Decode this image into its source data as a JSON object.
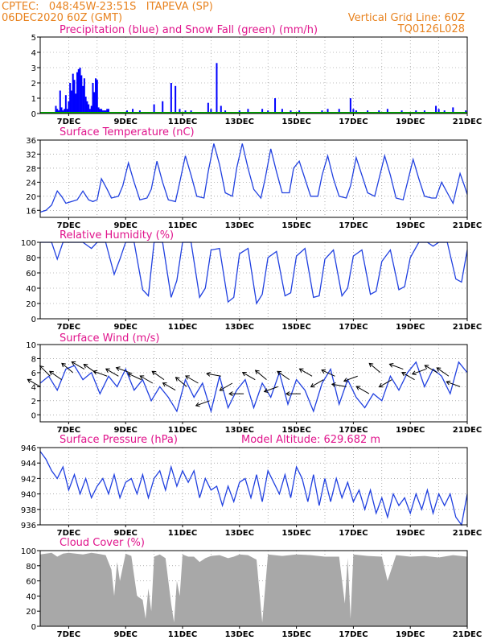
{
  "header": {
    "line1_left": "CPTEC:   048:45W-23:51S   ITAPEVA (SP)",
    "line2_left": "06DEC2020 60Z (GMT)",
    "line2_right": "Vertical Grid Line: 60Z",
    "line3_right": "TQ0126L028"
  },
  "colors": {
    "header": "#e8821e",
    "title": "#e0148c",
    "precip": "#0000ff",
    "snow": "#00aa00",
    "line": "#2040e0",
    "wind": "#000000",
    "cloud": "#a8a8a8",
    "grid": "#808080"
  },
  "x_axis": {
    "ticks": [
      "7DEC",
      "9DEC",
      "11DEC",
      "13DEC",
      "15DEC",
      "17DEC",
      "19DEC",
      "21DEC"
    ],
    "start_day": 6.0,
    "end_day": 21.0
  },
  "chart_data": [
    {
      "type": "bar",
      "title": "Precipitation (blue) and Snow Fall (green) (mm/h)",
      "ylim": [
        0,
        5
      ],
      "yticks": [
        "0",
        "1",
        "2",
        "3",
        "4",
        "5"
      ],
      "series": [
        {
          "name": "Precipitation",
          "x": [
            6.55,
            6.6,
            6.65,
            6.7,
            6.75,
            6.8,
            6.85,
            6.9,
            6.95,
            7.0,
            7.05,
            7.1,
            7.15,
            7.2,
            7.25,
            7.3,
            7.35,
            7.4,
            7.45,
            7.5,
            7.55,
            7.6,
            7.65,
            7.7,
            7.75,
            7.8,
            7.85,
            7.9,
            7.95,
            8.0,
            8.05,
            8.1,
            8.15,
            8.2,
            8.25,
            8.3,
            8.35,
            8.4,
            9.05,
            9.25,
            9.5,
            10.0,
            10.3,
            10.6,
            10.75,
            10.9,
            11.1,
            11.3,
            11.6,
            11.9,
            12.0,
            12.2,
            12.35,
            12.5,
            13.0,
            13.3,
            13.8,
            14.0,
            14.25,
            14.5,
            14.8,
            15.1,
            15.5,
            15.9,
            16.1,
            16.5,
            16.9,
            17.0,
            17.1,
            17.5,
            17.9,
            18.2,
            18.7,
            19.2,
            19.5,
            19.9,
            20.0,
            20.2,
            20.5,
            20.95
          ],
          "values": [
            0.5,
            0.3,
            0.2,
            1.5,
            0.4,
            0.2,
            0.3,
            1.2,
            0.3,
            0.8,
            2.0,
            1.5,
            2.6,
            2.2,
            1.3,
            2.7,
            2.9,
            3.0,
            2.5,
            1.8,
            2.3,
            1.1,
            0.8,
            0.6,
            0.3,
            0.5,
            2.0,
            1.4,
            2.3,
            2.2,
            0.4,
            0.3,
            0.3,
            0.2,
            0.2,
            0.2,
            0.3,
            0.3,
            0.2,
            0.3,
            0.2,
            0.6,
            0.8,
            2.0,
            1.8,
            0.3,
            0.2,
            0.2,
            0.1,
            0.7,
            0.3,
            3.3,
            0.5,
            0.2,
            0.2,
            0.3,
            0.3,
            0.2,
            1.0,
            0.3,
            0.2,
            0.2,
            0.1,
            0.2,
            0.3,
            0.3,
            1.0,
            0.3,
            0.2,
            0.2,
            0.2,
            0.3,
            0.2,
            0.2,
            0.2,
            0.5,
            0.3,
            0.2,
            0.4,
            0.2
          ]
        },
        {
          "name": "Snow Fall",
          "x": [
            6.0,
            21.0
          ],
          "values": [
            0,
            0
          ]
        }
      ]
    },
    {
      "type": "line",
      "title": "Surface Temperature (nC)",
      "ylim": [
        14,
        36
      ],
      "yticks": [
        "16",
        "20",
        "24",
        "28",
        "32",
        "36"
      ],
      "series": [
        {
          "name": "Temperature",
          "x": [
            6.0,
            6.2,
            6.4,
            6.6,
            6.75,
            6.9,
            7.1,
            7.3,
            7.5,
            7.7,
            7.85,
            8.0,
            8.15,
            8.35,
            8.5,
            8.75,
            8.9,
            9.1,
            9.3,
            9.5,
            9.75,
            9.9,
            10.1,
            10.3,
            10.5,
            10.75,
            10.9,
            11.1,
            11.3,
            11.5,
            11.75,
            11.9,
            12.1,
            12.3,
            12.5,
            12.75,
            12.9,
            13.1,
            13.3,
            13.5,
            13.75,
            13.9,
            14.1,
            14.3,
            14.5,
            14.75,
            14.9,
            15.1,
            15.3,
            15.5,
            15.75,
            15.9,
            16.1,
            16.3,
            16.5,
            16.75,
            16.9,
            17.1,
            17.3,
            17.5,
            17.75,
            17.9,
            18.1,
            18.3,
            18.5,
            18.75,
            18.9,
            19.1,
            19.3,
            19.5,
            19.75,
            19.9,
            20.1,
            20.3,
            20.5,
            20.75,
            20.9,
            21.0
          ],
          "values": [
            15.5,
            16.0,
            17.5,
            21.5,
            20.0,
            18.0,
            18.5,
            19.0,
            21.5,
            19.0,
            18.5,
            19.0,
            25.0,
            22.0,
            19.5,
            20.0,
            23.0,
            29.5,
            24.0,
            19.0,
            19.5,
            22.0,
            30.0,
            24.0,
            19.0,
            18.5,
            24.0,
            31.5,
            26.0,
            20.0,
            19.5,
            27.0,
            35.0,
            29.0,
            21.0,
            20.0,
            28.0,
            35.0,
            28.0,
            22.0,
            19.5,
            25.0,
            33.5,
            27.0,
            21.0,
            21.0,
            28.0,
            30.0,
            25.0,
            20.0,
            20.0,
            26.0,
            31.5,
            25.0,
            20.0,
            19.5,
            23.0,
            31.0,
            26.0,
            21.0,
            20.0,
            25.0,
            31.5,
            26.0,
            19.5,
            19.0,
            24.0,
            30.5,
            25.0,
            20.0,
            19.5,
            19.5,
            24.0,
            21.0,
            18.0,
            26.5,
            23.0,
            20.5
          ]
        }
      ]
    },
    {
      "type": "line",
      "title": "Relative Humidity (%)",
      "ylim": [
        0,
        100
      ],
      "yticks": [
        "0",
        "20",
        "40",
        "60",
        "80",
        "100"
      ],
      "series": [
        {
          "name": "Relative Humidity",
          "x": [
            6.0,
            6.4,
            6.6,
            6.8,
            7.0,
            7.5,
            7.8,
            8.0,
            8.3,
            8.6,
            8.8,
            9.0,
            9.3,
            9.6,
            9.8,
            10.0,
            10.3,
            10.6,
            10.8,
            11.0,
            11.3,
            11.6,
            11.8,
            12.0,
            12.3,
            12.6,
            12.8,
            13.0,
            13.3,
            13.6,
            13.8,
            14.0,
            14.3,
            14.6,
            14.8,
            15.0,
            15.3,
            15.6,
            15.8,
            16.0,
            16.3,
            16.6,
            16.8,
            17.0,
            17.3,
            17.6,
            17.8,
            18.0,
            18.3,
            18.6,
            18.8,
            19.0,
            19.3,
            19.6,
            19.8,
            20.0,
            20.3,
            20.6,
            20.8,
            21.0
          ],
          "values": [
            100,
            100,
            78,
            100,
            100,
            100,
            92,
            100,
            100,
            58,
            78,
            100,
            100,
            38,
            30,
            100,
            100,
            28,
            50,
            100,
            100,
            28,
            40,
            90,
            92,
            22,
            28,
            85,
            92,
            20,
            32,
            80,
            88,
            30,
            34,
            82,
            92,
            28,
            30,
            78,
            90,
            30,
            40,
            82,
            90,
            32,
            36,
            75,
            90,
            38,
            42,
            80,
            100,
            100,
            95,
            100,
            100,
            52,
            48,
            90
          ]
        }
      ]
    },
    {
      "type": "line",
      "title": "Surface Wind (m/s)",
      "ylim": [
        -1,
        10
      ],
      "yticks": [
        "0",
        "2",
        "4",
        "6",
        "8",
        "10"
      ],
      "series": [
        {
          "name": "Wind Speed",
          "x": [
            6.0,
            6.3,
            6.6,
            6.9,
            7.2,
            7.5,
            7.8,
            8.1,
            8.4,
            8.7,
            9.0,
            9.3,
            9.6,
            9.9,
            10.2,
            10.5,
            10.8,
            11.1,
            11.4,
            11.7,
            12.0,
            12.3,
            12.6,
            12.9,
            13.2,
            13.5,
            13.8,
            14.1,
            14.4,
            14.7,
            15.0,
            15.3,
            15.6,
            15.9,
            16.2,
            16.5,
            16.8,
            17.1,
            17.4,
            17.7,
            18.0,
            18.3,
            18.6,
            18.9,
            19.2,
            19.5,
            19.8,
            20.1,
            20.4,
            20.7,
            21.0
          ],
          "values": [
            4.5,
            5.5,
            3.5,
            6.5,
            7.0,
            5.0,
            6.0,
            3.0,
            5.5,
            4.0,
            6.5,
            3.5,
            5.0,
            2.0,
            4.0,
            2.5,
            0.5,
            5.0,
            2.5,
            4.5,
            0.5,
            5.5,
            1.0,
            3.5,
            5.0,
            1.0,
            4.5,
            2.5,
            6.0,
            1.5,
            5.0,
            3.5,
            0.5,
            4.5,
            6.5,
            1.5,
            5.0,
            2.5,
            1.0,
            3.0,
            2.0,
            5.5,
            3.5,
            6.0,
            7.5,
            4.0,
            6.5,
            5.5,
            3.0,
            7.5,
            6.0
          ]
        }
      ]
    },
    {
      "type": "line",
      "title": "Surface Pressure (hPa)",
      "annotation": "Model Altitude: 629.682 m",
      "ylim": [
        936,
        946
      ],
      "yticks": [
        "936",
        "938",
        "940",
        "942",
        "944",
        "946"
      ],
      "series": [
        {
          "name": "Surface Pressure",
          "x": [
            6.0,
            6.2,
            6.4,
            6.6,
            6.8,
            7.0,
            7.2,
            7.4,
            7.6,
            7.8,
            8.0,
            8.2,
            8.4,
            8.6,
            8.8,
            9.0,
            9.2,
            9.4,
            9.6,
            9.8,
            10.0,
            10.2,
            10.4,
            10.6,
            10.8,
            11.0,
            11.2,
            11.4,
            11.6,
            11.8,
            12.0,
            12.2,
            12.4,
            12.6,
            12.8,
            13.0,
            13.2,
            13.4,
            13.6,
            13.8,
            14.0,
            14.2,
            14.4,
            14.6,
            14.8,
            15.0,
            15.2,
            15.4,
            15.6,
            15.8,
            16.0,
            16.2,
            16.4,
            16.6,
            16.8,
            17.0,
            17.2,
            17.4,
            17.6,
            17.8,
            18.0,
            18.2,
            18.4,
            18.6,
            18.8,
            19.0,
            19.2,
            19.4,
            19.6,
            19.8,
            20.0,
            20.2,
            20.4,
            20.6,
            20.8,
            21.0
          ],
          "values": [
            945.5,
            944.5,
            943.0,
            942.0,
            943.5,
            940.5,
            942.5,
            940.0,
            942.0,
            939.5,
            941.0,
            942.0,
            940.0,
            942.5,
            939.5,
            941.5,
            942.0,
            940.0,
            942.5,
            939.5,
            942.0,
            943.0,
            940.5,
            943.5,
            941.0,
            943.0,
            941.5,
            943.0,
            939.5,
            942.0,
            940.5,
            941.0,
            938.5,
            941.0,
            939.0,
            941.5,
            942.0,
            939.5,
            942.5,
            939.0,
            943.0,
            941.5,
            940.0,
            942.5,
            939.5,
            943.5,
            942.0,
            939.0,
            942.5,
            938.5,
            942.0,
            939.0,
            942.0,
            939.5,
            941.5,
            939.0,
            940.5,
            938.0,
            940.5,
            937.5,
            939.5,
            937.0,
            940.0,
            938.5,
            939.5,
            937.5,
            940.0,
            938.0,
            940.5,
            937.5,
            940.0,
            938.5,
            940.0,
            937.0,
            936.0,
            940.0
          ]
        }
      ]
    },
    {
      "type": "area",
      "title": "Cloud Cover (%)",
      "ylim": [
        0,
        100
      ],
      "yticks": [
        "0",
        "20",
        "40",
        "60",
        "80",
        "100"
      ],
      "series": [
        {
          "name": "Cloud Cover",
          "x": [
            6.0,
            6.4,
            6.6,
            6.8,
            7.0,
            7.5,
            7.8,
            8.0,
            8.3,
            8.5,
            8.6,
            8.7,
            8.8,
            9.0,
            9.2,
            9.4,
            9.6,
            9.7,
            9.8,
            9.9,
            10.0,
            10.2,
            10.4,
            10.6,
            10.7,
            10.8,
            10.9,
            11.0,
            11.2,
            11.4,
            11.6,
            11.8,
            12.0,
            12.3,
            12.6,
            12.8,
            13.0,
            13.3,
            13.6,
            13.8,
            14.0,
            14.5,
            15.0,
            15.5,
            16.0,
            16.5,
            16.7,
            16.8,
            16.9,
            17.0,
            17.5,
            18.0,
            18.2,
            18.5,
            19.0,
            19.5,
            20.0,
            20.5,
            21.0
          ],
          "values": [
            95,
            97,
            92,
            96,
            97,
            95,
            97,
            96,
            94,
            75,
            40,
            85,
            60,
            96,
            93,
            40,
            35,
            10,
            50,
            20,
            92,
            95,
            90,
            30,
            5,
            60,
            40,
            95,
            92,
            92,
            85,
            90,
            93,
            94,
            90,
            92,
            95,
            94,
            88,
            5,
            95,
            93,
            95,
            94,
            92,
            92,
            30,
            90,
            10,
            95,
            93,
            92,
            60,
            94,
            92,
            93,
            91,
            94,
            92
          ]
        }
      ]
    }
  ],
  "wind_barbs": {
    "series": [
      {
        "x": [
          6.0,
          6.35,
          6.75,
          7.15,
          7.55,
          7.95,
          8.35,
          8.75,
          9.15,
          9.55,
          9.95,
          10.35,
          10.75,
          11.15,
          11.55,
          11.95,
          12.35,
          12.75,
          13.15,
          13.55,
          13.95,
          14.35,
          14.75,
          15.15,
          15.55,
          15.95,
          16.35,
          16.75,
          17.15,
          17.55,
          17.95,
          18.35,
          18.75,
          19.15,
          19.55,
          19.95,
          20.35,
          20.75
        ],
        "speed": [
          4.0,
          5.5,
          5.0,
          6.0,
          6.5,
          6.0,
          5.5,
          5.5,
          6.0,
          5.0,
          4.5,
          5.0,
          3.5,
          4.0,
          4.5,
          2.0,
          5.5,
          4.5,
          3.0,
          5.0,
          5.0,
          4.0,
          5.0,
          3.0,
          5.5,
          5.0,
          5.5,
          4.0,
          5.5,
          3.0,
          6.0,
          5.0,
          6.5,
          5.0,
          6.5,
          6.0,
          5.5,
          4.0
        ],
        "dir_deg": [
          150,
          135,
          145,
          140,
          150,
          145,
          160,
          150,
          160,
          155,
          150,
          145,
          150,
          140,
          150,
          200,
          170,
          210,
          180,
          150,
          140,
          200,
          145,
          180,
          150,
          210,
          155,
          170,
          200,
          150,
          140,
          210,
          160,
          150,
          200,
          150,
          145,
          160
        ]
      }
    ]
  }
}
